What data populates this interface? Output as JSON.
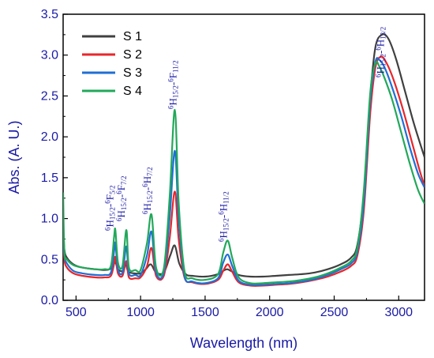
{
  "chart_data": {
    "type": "line",
    "title": "",
    "xlabel": "Wavelength (nm)",
    "ylabel": "Abs. (A. U.)",
    "xlim": [
      400,
      3200
    ],
    "ylim": [
      0.0,
      3.5
    ],
    "xticks": [
      "500",
      "1000",
      "1500",
      "2000",
      "2500",
      "3000"
    ],
    "yticks": [
      "0.0",
      "0.5",
      "1.0",
      "1.5",
      "2.0",
      "2.5",
      "3.0",
      "3.5"
    ],
    "grid": false,
    "legend_position": "top-left",
    "series": [
      {
        "name": "S 1",
        "color": "#404040",
        "points": [
          [
            400,
            0.95
          ],
          [
            410,
            0.62
          ],
          [
            430,
            0.52
          ],
          [
            480,
            0.44
          ],
          [
            550,
            0.4
          ],
          [
            650,
            0.38
          ],
          [
            720,
            0.37
          ],
          [
            760,
            0.38
          ],
          [
            790,
            0.43
          ],
          [
            805,
            0.47
          ],
          [
            825,
            0.38
          ],
          [
            860,
            0.36
          ],
          [
            885,
            0.44
          ],
          [
            905,
            0.35
          ],
          [
            950,
            0.33
          ],
          [
            1000,
            0.33
          ],
          [
            1040,
            0.38
          ],
          [
            1080,
            0.44
          ],
          [
            1120,
            0.34
          ],
          [
            1180,
            0.34
          ],
          [
            1230,
            0.55
          ],
          [
            1265,
            0.67
          ],
          [
            1300,
            0.45
          ],
          [
            1350,
            0.32
          ],
          [
            1400,
            0.3
          ],
          [
            1500,
            0.29
          ],
          [
            1600,
            0.32
          ],
          [
            1640,
            0.36
          ],
          [
            1670,
            0.38
          ],
          [
            1700,
            0.36
          ],
          [
            1760,
            0.31
          ],
          [
            1850,
            0.29
          ],
          [
            1950,
            0.29
          ],
          [
            2050,
            0.3
          ],
          [
            2150,
            0.31
          ],
          [
            2250,
            0.32
          ],
          [
            2350,
            0.34
          ],
          [
            2450,
            0.38
          ],
          [
            2550,
            0.44
          ],
          [
            2630,
            0.52
          ],
          [
            2680,
            0.68
          ],
          [
            2730,
            1.3
          ],
          [
            2780,
            2.5
          ],
          [
            2820,
            3.1
          ],
          [
            2870,
            3.25
          ],
          [
            2920,
            3.2
          ],
          [
            2980,
            2.95
          ],
          [
            3050,
            2.55
          ],
          [
            3120,
            2.15
          ],
          [
            3200,
            1.75
          ]
        ]
      },
      {
        "name": "S 2",
        "color": "#e8262b",
        "points": [
          [
            400,
            0.85
          ],
          [
            410,
            0.5
          ],
          [
            430,
            0.4
          ],
          [
            480,
            0.33
          ],
          [
            550,
            0.3
          ],
          [
            650,
            0.28
          ],
          [
            720,
            0.28
          ],
          [
            770,
            0.3
          ],
          [
            795,
            0.45
          ],
          [
            805,
            0.53
          ],
          [
            825,
            0.33
          ],
          [
            860,
            0.3
          ],
          [
            890,
            0.48
          ],
          [
            910,
            0.28
          ],
          [
            960,
            0.27
          ],
          [
            1000,
            0.28
          ],
          [
            1050,
            0.42
          ],
          [
            1085,
            0.64
          ],
          [
            1120,
            0.3
          ],
          [
            1180,
            0.3
          ],
          [
            1225,
            0.75
          ],
          [
            1265,
            1.33
          ],
          [
            1295,
            0.75
          ],
          [
            1340,
            0.28
          ],
          [
            1400,
            0.22
          ],
          [
            1500,
            0.2
          ],
          [
            1600,
            0.25
          ],
          [
            1640,
            0.36
          ],
          [
            1675,
            0.44
          ],
          [
            1710,
            0.35
          ],
          [
            1760,
            0.22
          ],
          [
            1850,
            0.18
          ],
          [
            1950,
            0.18
          ],
          [
            2050,
            0.19
          ],
          [
            2150,
            0.2
          ],
          [
            2250,
            0.22
          ],
          [
            2350,
            0.25
          ],
          [
            2450,
            0.29
          ],
          [
            2550,
            0.35
          ],
          [
            2630,
            0.42
          ],
          [
            2680,
            0.55
          ],
          [
            2730,
            1.1
          ],
          [
            2780,
            2.3
          ],
          [
            2820,
            2.85
          ],
          [
            2860,
            2.98
          ],
          [
            2900,
            2.92
          ],
          [
            2960,
            2.7
          ],
          [
            3030,
            2.35
          ],
          [
            3100,
            1.95
          ],
          [
            3160,
            1.6
          ],
          [
            3200,
            1.4
          ]
        ]
      },
      {
        "name": "S 3",
        "color": "#1f6fd6",
        "points": [
          [
            400,
            0.88
          ],
          [
            410,
            0.55
          ],
          [
            430,
            0.45
          ],
          [
            480,
            0.36
          ],
          [
            550,
            0.33
          ],
          [
            650,
            0.31
          ],
          [
            720,
            0.31
          ],
          [
            770,
            0.34
          ],
          [
            795,
            0.6
          ],
          [
            805,
            0.7
          ],
          [
            825,
            0.38
          ],
          [
            860,
            0.34
          ],
          [
            890,
            0.66
          ],
          [
            910,
            0.33
          ],
          [
            960,
            0.31
          ],
          [
            1000,
            0.31
          ],
          [
            1050,
            0.55
          ],
          [
            1085,
            0.84
          ],
          [
            1120,
            0.34
          ],
          [
            1180,
            0.34
          ],
          [
            1225,
            1.0
          ],
          [
            1265,
            1.83
          ],
          [
            1295,
            1.0
          ],
          [
            1340,
            0.3
          ],
          [
            1400,
            0.23
          ],
          [
            1500,
            0.21
          ],
          [
            1600,
            0.27
          ],
          [
            1640,
            0.46
          ],
          [
            1675,
            0.56
          ],
          [
            1710,
            0.42
          ],
          [
            1760,
            0.24
          ],
          [
            1850,
            0.19
          ],
          [
            1950,
            0.19
          ],
          [
            2050,
            0.2
          ],
          [
            2150,
            0.21
          ],
          [
            2250,
            0.23
          ],
          [
            2350,
            0.26
          ],
          [
            2450,
            0.31
          ],
          [
            2550,
            0.38
          ],
          [
            2630,
            0.45
          ],
          [
            2680,
            0.6
          ],
          [
            2730,
            1.2
          ],
          [
            2780,
            2.45
          ],
          [
            2820,
            2.92
          ],
          [
            2850,
            2.94
          ],
          [
            2890,
            2.85
          ],
          [
            2950,
            2.6
          ],
          [
            3020,
            2.25
          ],
          [
            3090,
            1.85
          ],
          [
            3150,
            1.55
          ],
          [
            3200,
            1.38
          ]
        ]
      },
      {
        "name": "S 4",
        "color": "#22a85a",
        "points": [
          [
            400,
            1.32
          ],
          [
            410,
            0.58
          ],
          [
            430,
            0.5
          ],
          [
            480,
            0.43
          ],
          [
            550,
            0.4
          ],
          [
            650,
            0.38
          ],
          [
            720,
            0.38
          ],
          [
            770,
            0.42
          ],
          [
            795,
            0.78
          ],
          [
            805,
            0.86
          ],
          [
            825,
            0.46
          ],
          [
            860,
            0.42
          ],
          [
            890,
            0.86
          ],
          [
            910,
            0.4
          ],
          [
            960,
            0.37
          ],
          [
            1000,
            0.37
          ],
          [
            1050,
            0.7
          ],
          [
            1085,
            1.05
          ],
          [
            1120,
            0.4
          ],
          [
            1180,
            0.39
          ],
          [
            1225,
            1.25
          ],
          [
            1265,
            2.33
          ],
          [
            1295,
            1.2
          ],
          [
            1340,
            0.36
          ],
          [
            1400,
            0.27
          ],
          [
            1500,
            0.25
          ],
          [
            1600,
            0.32
          ],
          [
            1640,
            0.58
          ],
          [
            1675,
            0.73
          ],
          [
            1710,
            0.52
          ],
          [
            1760,
            0.28
          ],
          [
            1850,
            0.21
          ],
          [
            1950,
            0.21
          ],
          [
            2050,
            0.22
          ],
          [
            2150,
            0.23
          ],
          [
            2250,
            0.25
          ],
          [
            2350,
            0.28
          ],
          [
            2450,
            0.33
          ],
          [
            2550,
            0.4
          ],
          [
            2630,
            0.48
          ],
          [
            2680,
            0.65
          ],
          [
            2730,
            1.35
          ],
          [
            2780,
            2.55
          ],
          [
            2820,
            2.9
          ],
          [
            2850,
            2.86
          ],
          [
            2890,
            2.72
          ],
          [
            2950,
            2.45
          ],
          [
            3020,
            2.05
          ],
          [
            3090,
            1.65
          ],
          [
            3150,
            1.35
          ],
          [
            3200,
            1.18
          ]
        ]
      }
    ],
    "annotations": [
      {
        "base": "H",
        "presub": "6",
        "sub": "15/2",
        "dash": "-",
        "base2": "F",
        "presub2": "6",
        "sub2": "5/2",
        "x": 800
      },
      {
        "base": "H",
        "presub": "6",
        "sub": "15/2",
        "dash": "-",
        "base2": "F",
        "presub2": "6",
        "sub2": "7/2",
        "x": 890
      },
      {
        "base": "H",
        "presub": "6",
        "sub": "15/2",
        "dash": "-",
        "base2": "H",
        "presub2": "6",
        "sub2": "7/2",
        "x": 1090
      },
      {
        "base": "H",
        "presub": "6",
        "sub": "15/2",
        "dash": "-",
        "base2": "F",
        "presub2": "6",
        "sub2": "11/2",
        "x": 1265
      },
      {
        "base": "H",
        "presub": "6",
        "sub": "15/2",
        "dash": "-",
        "base2": "H",
        "presub2": "6",
        "sub2": "11/2",
        "x": 1670
      },
      {
        "base": "H",
        "presub": "6",
        "sub": "15/2",
        "dash": "-",
        "base2": "H",
        "presub2": "6",
        "sub2": "13/2",
        "x": 2860
      }
    ]
  }
}
